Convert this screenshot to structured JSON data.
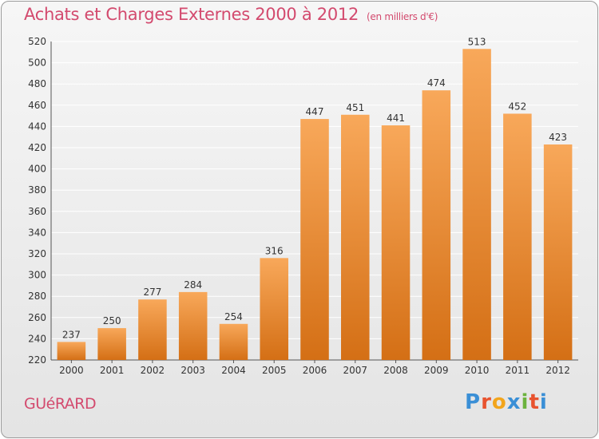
{
  "title": "Achats et Charges Externes 2000 à 2012",
  "unit_note": "(en milliers d'€)",
  "commune": "GUéRARD",
  "brand": {
    "name": "Proxiti",
    "letters": [
      {
        "char": "P",
        "color": "#3a8fd6"
      },
      {
        "char": "r",
        "color": "#e8532f"
      },
      {
        "char": "o",
        "color": "#f2a51c"
      },
      {
        "char": "x",
        "color": "#3a8fd6"
      },
      {
        "char": "i",
        "color": "#6cb33e"
      },
      {
        "char": "t",
        "color": "#e8532f"
      },
      {
        "char": "i",
        "color": "#3a8fd6"
      }
    ]
  },
  "colors": {
    "bar_top": "#f8a85a",
    "bar_bottom": "#d46f15",
    "grid": "#ffffff",
    "title": "#d34a6e"
  },
  "chart_data": {
    "type": "bar",
    "title": "Achats et Charges Externes 2000 à 2012",
    "subtitle": "(en milliers d'€)",
    "xlabel": "",
    "ylabel": "",
    "categories": [
      "2000",
      "2001",
      "2002",
      "2003",
      "2004",
      "2005",
      "2006",
      "2007",
      "2008",
      "2009",
      "2010",
      "2011",
      "2012"
    ],
    "values": [
      237,
      250,
      277,
      284,
      254,
      316,
      447,
      451,
      441,
      474,
      513,
      452,
      423
    ],
    "ylim": [
      220,
      520
    ],
    "yticks": [
      220,
      240,
      260,
      280,
      300,
      320,
      340,
      360,
      380,
      400,
      420,
      440,
      460,
      480,
      500,
      520
    ],
    "grid": true,
    "legend": "none",
    "data_labels": true
  }
}
